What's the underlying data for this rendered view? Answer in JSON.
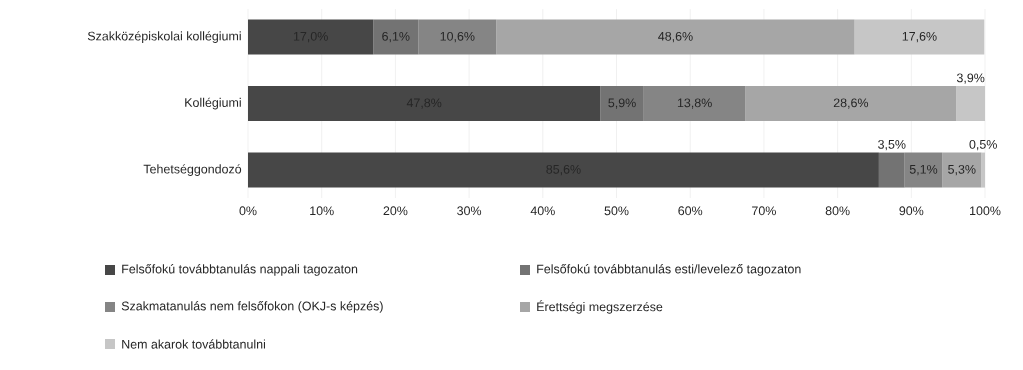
{
  "chart_data": {
    "type": "bar",
    "orientation": "horizontal",
    "stacked": true,
    "categories": [
      "Szakközépiskolai kollégiumi",
      "Kollégiumi",
      "Tehetséggondozó"
    ],
    "series": [
      {
        "name": "Felsőfokú továbbtanulás nappali tagozaton",
        "color": "#474747",
        "values": [
          17.0,
          47.8,
          85.6
        ],
        "value_labels": [
          "17,0%",
          "47,8%",
          "85,6%"
        ]
      },
      {
        "name": "Felsőfokú továbbtanulás esti/levelező tagozaton",
        "color": "#737373",
        "values": [
          6.1,
          5.9,
          3.5
        ],
        "value_labels": [
          "6,1%",
          "5,9%",
          "3,5%"
        ]
      },
      {
        "name": "Szakmatanulás nem felsőfokon (OKJ-s képzés)",
        "color": "#858585",
        "values": [
          10.6,
          13.8,
          5.1
        ],
        "value_labels": [
          "10,6%",
          "13,8%",
          "5,1%"
        ]
      },
      {
        "name": "Érettségi megszerzése",
        "color": "#a6a6a6",
        "values": [
          48.6,
          28.6,
          5.3
        ],
        "value_labels": [
          "48,6%",
          "28,6%",
          "5,3%"
        ]
      },
      {
        "name": "Nem akarok továbbtanulni",
        "color": "#c6c6c6",
        "values": [
          17.6,
          3.9,
          0.5
        ],
        "value_labels": [
          "17,6%",
          "3,9%",
          "0,5%"
        ]
      }
    ],
    "xlim": [
      0,
      100
    ],
    "xticks": [
      {
        "value": 0,
        "label": "0%"
      },
      {
        "value": 10,
        "label": "10%"
      },
      {
        "value": 20,
        "label": "20%"
      },
      {
        "value": 30,
        "label": "30%"
      },
      {
        "value": 40,
        "label": "40%"
      },
      {
        "value": 50,
        "label": "50%"
      },
      {
        "value": 60,
        "label": "60%"
      },
      {
        "value": 70,
        "label": "70%"
      },
      {
        "value": 80,
        "label": "80%"
      },
      {
        "value": 90,
        "label": "90%"
      },
      {
        "value": 100,
        "label": "100%"
      }
    ],
    "grid": "x",
    "legend": "bottom"
  }
}
